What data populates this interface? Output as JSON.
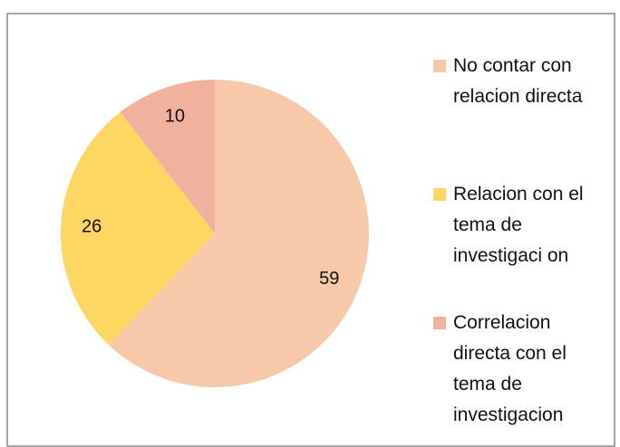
{
  "chart_data": {
    "type": "pie",
    "categories": [
      "No contar con relacion directa",
      "Relacion con el tema de investigaci on",
      "Correlacion directa con el tema de investigacion"
    ],
    "values": [
      59,
      26,
      10
    ],
    "colors": [
      "#f8c9a9",
      "#fdd663",
      "#f0b29f"
    ],
    "legend": "right"
  }
}
